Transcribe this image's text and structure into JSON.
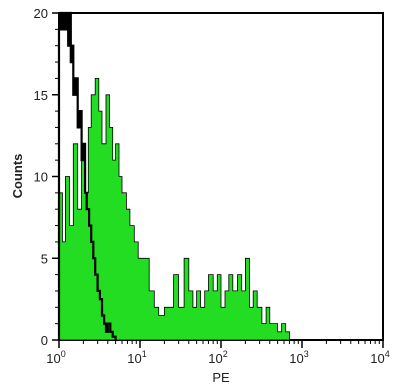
{
  "chart_data": {
    "type": "area",
    "title": "",
    "xlabel": "PE",
    "ylabel": "Counts",
    "x_scale": "log",
    "xlim": [
      1,
      10000
    ],
    "ylim": [
      0,
      20
    ],
    "x_ticks": [
      {
        "base": "10",
        "exp": "0"
      },
      {
        "base": "10",
        "exp": "1"
      },
      {
        "base": "10",
        "exp": "2"
      },
      {
        "base": "10",
        "exp": "3"
      },
      {
        "base": "10",
        "exp": "4"
      }
    ],
    "y_ticks": [
      "0",
      "5",
      "10",
      "15",
      "20"
    ],
    "grid": false,
    "series": [
      {
        "style": "filled",
        "color": "#22dd22",
        "x": [
          1.0,
          1.1,
          1.2,
          1.35,
          1.5,
          1.7,
          1.9,
          2.1,
          2.3,
          2.5,
          2.8,
          3.1,
          3.4,
          3.8,
          4.2,
          4.6,
          5.0,
          5.5,
          6.0,
          6.8,
          7.5,
          8.5,
          9.5,
          11,
          13,
          15,
          17,
          20,
          23,
          26,
          30,
          35,
          40,
          45,
          50,
          56,
          63,
          70,
          80,
          90,
          100,
          112,
          125,
          140,
          160,
          180,
          200,
          225,
          250,
          280,
          320,
          360,
          400,
          450,
          500,
          560,
          630,
          700
        ],
        "y": [
          9,
          6,
          10,
          7,
          12,
          8,
          11,
          9,
          13,
          15,
          16,
          14,
          12,
          15,
          13,
          11,
          12,
          10,
          9,
          8,
          7,
          6,
          5,
          5,
          3,
          2,
          1.5,
          2,
          2,
          4,
          2,
          5,
          3,
          2,
          3,
          2,
          3,
          4,
          3,
          4,
          2,
          3,
          4,
          3,
          4,
          3,
          5,
          2,
          3,
          2,
          1,
          2,
          1,
          1,
          0.5,
          1,
          0.5,
          0
        ]
      },
      {
        "style": "outline",
        "color": "#000000",
        "x": [
          1.0,
          1.05,
          1.1,
          1.15,
          1.2,
          1.25,
          1.3,
          1.35,
          1.4,
          1.45,
          1.5,
          1.6,
          1.7,
          1.8,
          1.9,
          2.0,
          2.1,
          2.2,
          2.35,
          2.5,
          2.65,
          2.8,
          3.0,
          3.2,
          3.4,
          3.6,
          3.8,
          4.0,
          4.3,
          4.6,
          5.0
        ],
        "y": [
          19,
          20,
          19,
          20,
          19,
          20,
          18,
          20,
          17,
          18,
          15,
          16,
          13,
          14,
          11,
          12,
          9,
          8,
          7,
          6,
          5,
          4,
          3,
          2.5,
          1.5,
          1,
          0.5,
          1,
          0.5,
          0.2,
          0
        ]
      }
    ]
  }
}
